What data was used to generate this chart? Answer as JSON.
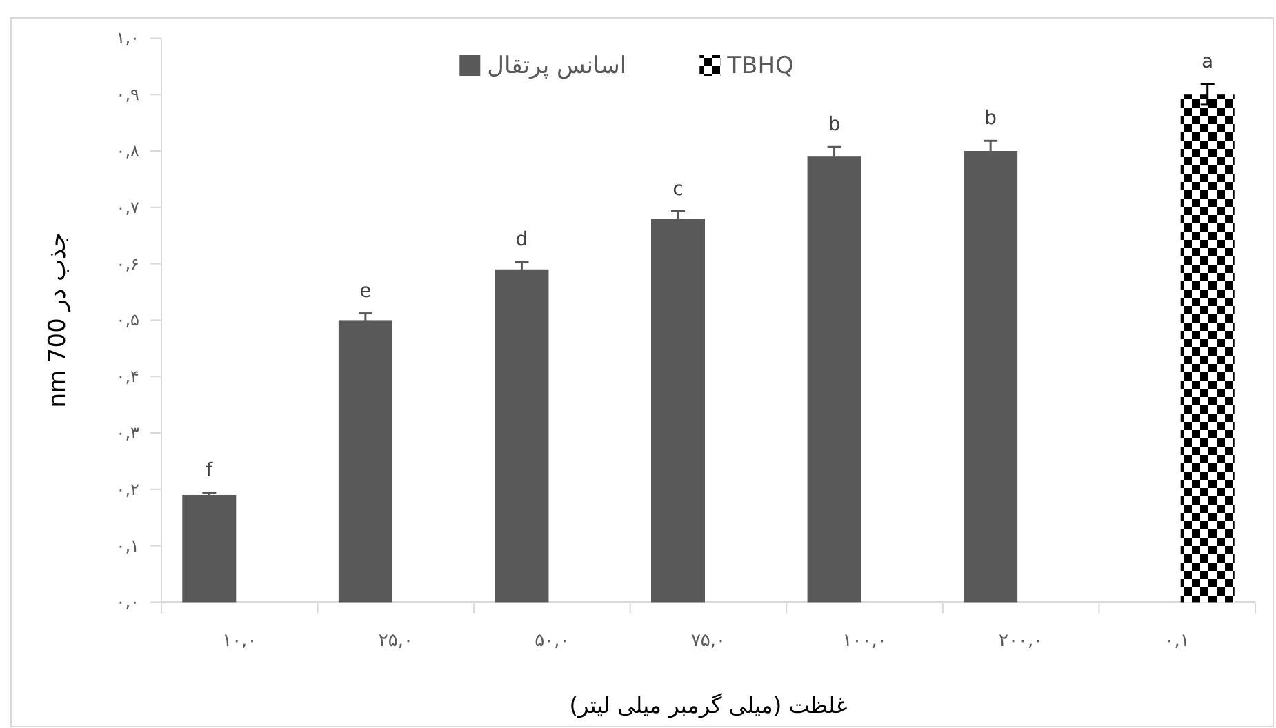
{
  "chart_data": {
    "type": "bar",
    "xlabel": "غلظت (میلی گرمبر میلی لیتر)",
    "ylabel": "جذب در 700 nm",
    "categories": [
      "۱۰,۰",
      "۲۵,۰",
      "۵۰,۰",
      "۷۵,۰",
      "۱۰۰,۰",
      "۲۰۰,۰",
      "۰,۱"
    ],
    "series": [
      {
        "name": "اسانس پرتقال",
        "color": "#595959",
        "values": [
          0.19,
          0.5,
          0.59,
          0.68,
          0.79,
          0.8,
          null
        ],
        "errors": [
          0.004,
          0.012,
          0.013,
          0.013,
          0.017,
          0.018,
          null
        ]
      },
      {
        "name": "TBHQ",
        "color": "#000000",
        "values": [
          null,
          null,
          null,
          null,
          null,
          null,
          0.9
        ],
        "errors": [
          null,
          null,
          null,
          null,
          null,
          null,
          0.018
        ]
      }
    ],
    "ylim": [
      0,
      1
    ],
    "yticks": [
      {
        "value": 0,
        "label": "۰,۰"
      },
      {
        "value": 0.1,
        "label": "۰,۱"
      },
      {
        "value": 0.2,
        "label": "۰,۲"
      },
      {
        "value": 0.3,
        "label": "۰,۳"
      },
      {
        "value": 0.4,
        "label": "۰,۴"
      },
      {
        "value": 0.5,
        "label": "۰,۵"
      },
      {
        "value": 0.6,
        "label": "۰,۶"
      },
      {
        "value": 0.7,
        "label": "۰,۷"
      },
      {
        "value": 0.8,
        "label": "۰,۸"
      },
      {
        "value": 0.9,
        "label": "۰,۹"
      },
      {
        "value": 1,
        "label": "۱,۰"
      }
    ],
    "legend": "top",
    "annotations": [
      {
        "text": "f",
        "x": "۱۰,۰",
        "y": 0.19
      },
      {
        "text": "e",
        "x": "۲۵,۰",
        "y": 0.5
      },
      {
        "text": "d",
        "x": "۵۰,۰",
        "y": 0.59
      },
      {
        "text": "c",
        "x": "۷۵,۰",
        "y": 0.68
      },
      {
        "text": "b",
        "x": "۱۰۰,۰",
        "y": 0.79
      },
      {
        "text": "b",
        "x": "۲۰۰,۰",
        "y": 0.8
      },
      {
        "text": "a",
        "x": "۰,۱",
        "y": 0.9
      }
    ]
  }
}
